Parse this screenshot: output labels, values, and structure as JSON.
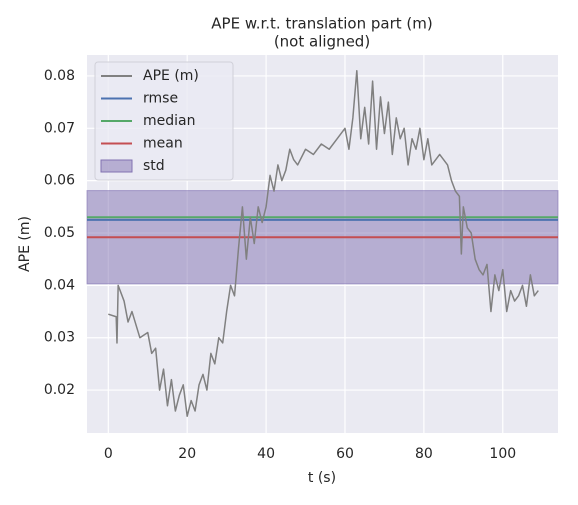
{
  "chart_data": {
    "type": "line",
    "title": "APE w.r.t. translation part (m)",
    "subtitle": "(not aligned)",
    "xlabel": "t (s)",
    "ylabel": "APE (m)",
    "x": [
      0,
      2,
      2.2,
      2.5,
      4,
      5,
      6,
      8,
      10,
      11,
      12,
      13,
      14,
      15,
      16,
      17,
      18,
      19,
      20,
      21,
      22,
      23,
      24,
      25,
      26,
      27,
      28,
      29,
      30,
      31,
      32,
      33,
      34,
      35,
      36,
      37,
      38,
      39,
      40,
      41,
      42,
      43,
      44,
      45,
      46,
      47,
      48,
      50,
      52,
      54,
      56,
      58,
      60,
      61,
      62,
      63,
      64,
      65,
      66,
      67,
      68,
      69,
      70,
      71,
      72,
      73,
      74,
      75,
      76,
      77,
      78,
      79,
      80,
      81,
      82,
      84,
      86,
      87,
      88,
      89,
      89.5,
      90,
      91,
      92,
      93,
      94,
      95,
      96,
      97,
      98,
      99,
      100,
      101,
      102,
      103,
      104,
      105,
      106,
      107,
      108,
      109
    ],
    "series": [
      {
        "name": "APE (m)",
        "color": "#808080",
        "values": [
          0.0345,
          0.034,
          0.029,
          0.04,
          0.037,
          0.033,
          0.035,
          0.03,
          0.031,
          0.027,
          0.028,
          0.02,
          0.024,
          0.017,
          0.022,
          0.016,
          0.019,
          0.021,
          0.015,
          0.018,
          0.016,
          0.021,
          0.023,
          0.02,
          0.027,
          0.025,
          0.03,
          0.029,
          0.035,
          0.04,
          0.038,
          0.047,
          0.055,
          0.045,
          0.053,
          0.048,
          0.055,
          0.052,
          0.055,
          0.061,
          0.058,
          0.063,
          0.06,
          0.062,
          0.066,
          0.064,
          0.063,
          0.066,
          0.065,
          0.067,
          0.066,
          0.068,
          0.07,
          0.066,
          0.072,
          0.081,
          0.068,
          0.074,
          0.067,
          0.079,
          0.066,
          0.076,
          0.069,
          0.075,
          0.065,
          0.072,
          0.068,
          0.07,
          0.063,
          0.068,
          0.066,
          0.07,
          0.064,
          0.068,
          0.063,
          0.065,
          0.063,
          0.06,
          0.058,
          0.057,
          0.046,
          0.055,
          0.051,
          0.05,
          0.045,
          0.043,
          0.042,
          0.044,
          0.035,
          0.042,
          0.039,
          0.043,
          0.035,
          0.039,
          0.037,
          0.038,
          0.04,
          0.036,
          0.042,
          0.038,
          0.039
        ]
      }
    ],
    "stats": [
      {
        "name": "rmse",
        "color": "#4c72b0",
        "value": 0.0525
      },
      {
        "name": "median",
        "color": "#55a868",
        "value": 0.053
      },
      {
        "name": "mean",
        "color": "#c44e52",
        "value": 0.0492
      },
      {
        "name": "std",
        "color": "#8172b2",
        "value": 0.0089
      }
    ],
    "xlim": [
      -5.4,
      114
    ],
    "ylim": [
      0.0118,
      0.084
    ],
    "xticks": [
      0,
      20,
      40,
      60,
      80,
      100
    ],
    "yticks": [
      0.02,
      0.03,
      0.04,
      0.05,
      0.06,
      0.07,
      0.08
    ],
    "grid": true,
    "legend": "upper left"
  }
}
